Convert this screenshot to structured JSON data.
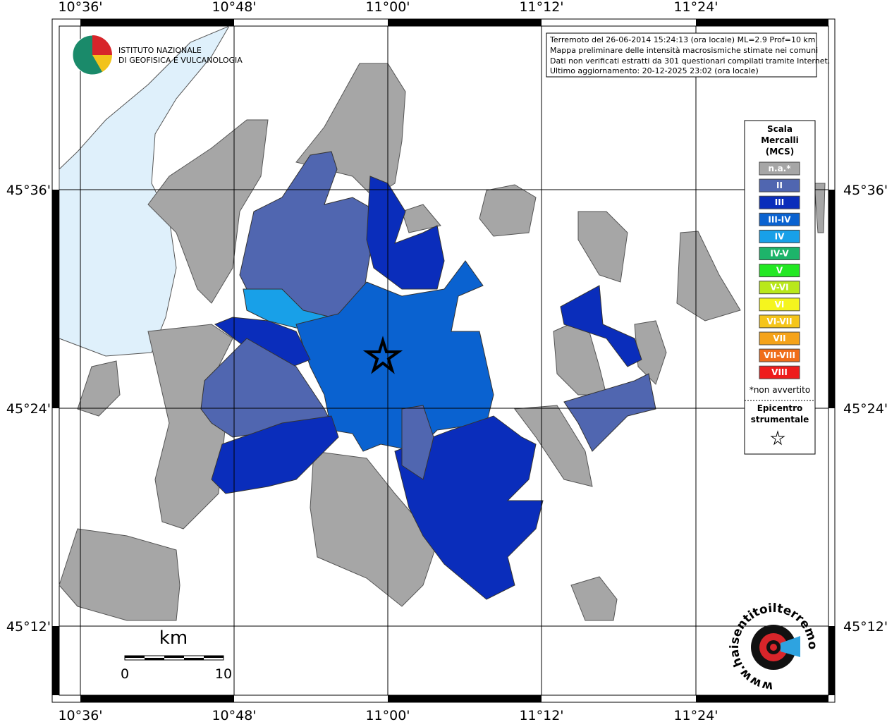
{
  "header": {
    "logo_lines": [
      "ISTITUTO NAZIONALE",
      "DI GEOFISICA E VULCANOLOGIA"
    ]
  },
  "info_box": {
    "lines": [
      "Terremoto del 26-06-2014 15:24:13 (ora locale) ML=2.9 Prof=10 km",
      "Mappa preliminare delle intensità macrosismiche stimate nei comuni",
      "Dati non verificati estratti da 301 questionari compilati tramite Internet.",
      "Ultimo aggiornamento: 20-12-2025 23:02 (ora locale)"
    ]
  },
  "map": {
    "lon_labels": [
      "10°36'",
      "10°48'",
      "11°00'",
      "11°12'",
      "11°24'"
    ],
    "lat_labels": [
      "45°36'",
      "45°24'",
      "45°12'"
    ],
    "scale_bar": {
      "unit": "km",
      "start": "0",
      "end": "10"
    },
    "site_logo": "www.haisentitoilterremoto.it"
  },
  "legend": {
    "title_lines": [
      "Scala",
      "Mercalli",
      "(MCS)"
    ],
    "items": [
      {
        "label": "n.a.*",
        "color": "#a6a6a6"
      },
      {
        "label": "II",
        "color": "#5066b0"
      },
      {
        "label": "III",
        "color": "#0a2dbb"
      },
      {
        "label": "III-IV",
        "color": "#0a62d0"
      },
      {
        "label": "IV",
        "color": "#18a0e8"
      },
      {
        "label": "IV-V",
        "color": "#1db46a"
      },
      {
        "label": "V",
        "color": "#22e822"
      },
      {
        "label": "V-VI",
        "color": "#b9e81b"
      },
      {
        "label": "VI",
        "color": "#f5f51e"
      },
      {
        "label": "VI-VII",
        "color": "#f5c51a"
      },
      {
        "label": "VII",
        "color": "#f5a31a"
      },
      {
        "label": "VII-VIII",
        "color": "#f06d1a"
      },
      {
        "label": "VIII",
        "color": "#ee1c1c"
      }
    ],
    "note": "*non avvertito",
    "epicentre_lines": [
      "Epicentro",
      "strumentale"
    ]
  }
}
